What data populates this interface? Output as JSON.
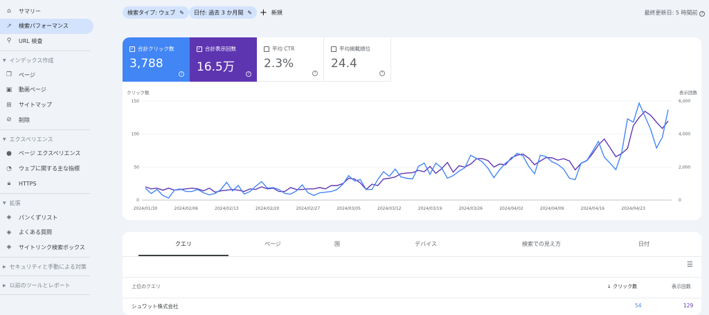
{
  "sidebar": {
    "items": [
      {
        "label": "サマリー",
        "icon": "home-icon"
      },
      {
        "label": "検索パフォーマンス",
        "icon": "trending-up-icon",
        "selected": true
      },
      {
        "label": "URL 検査",
        "icon": "search-icon"
      }
    ],
    "sections": [
      {
        "title": "インデックス作成",
        "items": [
          {
            "label": "ページ",
            "icon": "pages-icon"
          },
          {
            "label": "動画ページ",
            "icon": "video-pages-icon"
          },
          {
            "label": "サイトマップ",
            "icon": "sitemap-icon"
          },
          {
            "label": "削除",
            "icon": "removal-icon"
          }
        ]
      },
      {
        "title": "エクスペリエンス",
        "items": [
          {
            "label": "ページ エクスペリエンス",
            "icon": "page-experience-icon"
          },
          {
            "label": "ウェブに関する主な指標",
            "icon": "gauge-icon"
          },
          {
            "label": "HTTPS",
            "icon": "lock-icon"
          }
        ]
      },
      {
        "title": "拡張",
        "items": [
          {
            "label": "パンくずリスト",
            "icon": "layers-icon"
          },
          {
            "label": "よくある質問",
            "icon": "layers-icon"
          },
          {
            "label": "サイトリンク検索ボックス",
            "icon": "layers-icon"
          }
        ]
      },
      {
        "title": "セキュリティと手動による対策",
        "items": []
      },
      {
        "title": "以前のツールとレポート",
        "items": []
      }
    ]
  },
  "filters": {
    "chips": [
      "検索タイプ: ウェブ",
      "日付: 過去 3 か月間"
    ],
    "new_label": "新規"
  },
  "last_updated": "最終更新日: 5 時間前",
  "metrics": [
    {
      "label": "合計クリック数",
      "value": "3,788",
      "checked": true,
      "color": "#4285f4"
    },
    {
      "label": "合計表示回数",
      "value": "16.5万",
      "checked": true,
      "color": "#5e35b1"
    },
    {
      "label": "平均 CTR",
      "value": "2.3%",
      "checked": false
    },
    {
      "label": "平均掲載順位",
      "value": "24.4",
      "checked": false
    }
  ],
  "chart_data": {
    "type": "line",
    "left_axis": {
      "label": "クリック数",
      "ticks": [
        "150",
        "100",
        "50",
        "0"
      ],
      "range": [
        0,
        150
      ]
    },
    "right_axis": {
      "label": "表示回数",
      "ticks": [
        "6,000",
        "4,000",
        "2,000",
        "0"
      ],
      "range": [
        0,
        6000
      ]
    },
    "x_ticks": [
      "2024/01/30",
      "2024/02/06",
      "2024/02/13",
      "2024/02/20",
      "2024/02/27",
      "2024/03/05",
      "2024/03/12",
      "2024/03/19",
      "2024/03/26",
      "2024/04/02",
      "2024/04/09",
      "2024/04/16",
      "2024/04/23"
    ],
    "x_range": [
      "2024/01/30",
      "2024/04/29"
    ],
    "grid": true,
    "series": [
      {
        "name": "合計クリック数",
        "axis": "left",
        "color": "#4285f4",
        "values": [
          18,
          10,
          16,
          7,
          3,
          15,
          17,
          13,
          13,
          16,
          11,
          8,
          10,
          16,
          27,
          14,
          22,
          9,
          13,
          21,
          28,
          18,
          19,
          16,
          10,
          9,
          14,
          23,
          11,
          7,
          11,
          12,
          13,
          16,
          24,
          37,
          29,
          31,
          16,
          16,
          31,
          43,
          36,
          47,
          35,
          33,
          32,
          51,
          56,
          39,
          56,
          49,
          33,
          37,
          44,
          49,
          68,
          63,
          58,
          48,
          34,
          46,
          56,
          62,
          71,
          67,
          51,
          40,
          68,
          66,
          58,
          54,
          47,
          33,
          31,
          56,
          60,
          74,
          89,
          65,
          56,
          46,
          72,
          123,
          118,
          147,
          127,
          107,
          79,
          95,
          137
        ]
      },
      {
        "name": "合計表示回数",
        "axis": "right",
        "color": "#5e35b1",
        "values": [
          800,
          680,
          720,
          600,
          720,
          600,
          640,
          680,
          720,
          680,
          560,
          720,
          480,
          560,
          600,
          640,
          600,
          520,
          680,
          640,
          800,
          680,
          720,
          520,
          520,
          760,
          640,
          640,
          680,
          680,
          760,
          680,
          880,
          880,
          1000,
          1320,
          1280,
          1040,
          640,
          960,
          880,
          1280,
          1320,
          1400,
          1600,
          1640,
          1660,
          1800,
          1720,
          2040,
          1620,
          1900,
          2280,
          1690,
          2080,
          2000,
          2180,
          2510,
          2510,
          2390,
          2000,
          2180,
          2140,
          2560,
          2720,
          2790,
          2540,
          2140,
          2370,
          2580,
          2560,
          2420,
          2510,
          2370,
          1830,
          2230,
          2390,
          2820,
          3340,
          3700,
          3170,
          2630,
          2820,
          3130,
          4510,
          5000,
          5380,
          5140,
          4720,
          4340,
          4790
        ]
      }
    ]
  },
  "table": {
    "tabs": [
      "クエリ",
      "ページ",
      "国",
      "デバイス",
      "検索での見え方",
      "日付"
    ],
    "columns": [
      "上位のクエリ",
      "クリック数",
      "表示回数"
    ],
    "sort_icon": "arrow-down-icon",
    "rows": [
      {
        "query": "シュワット株式会社",
        "clicks": "54",
        "impressions": "129"
      }
    ]
  }
}
